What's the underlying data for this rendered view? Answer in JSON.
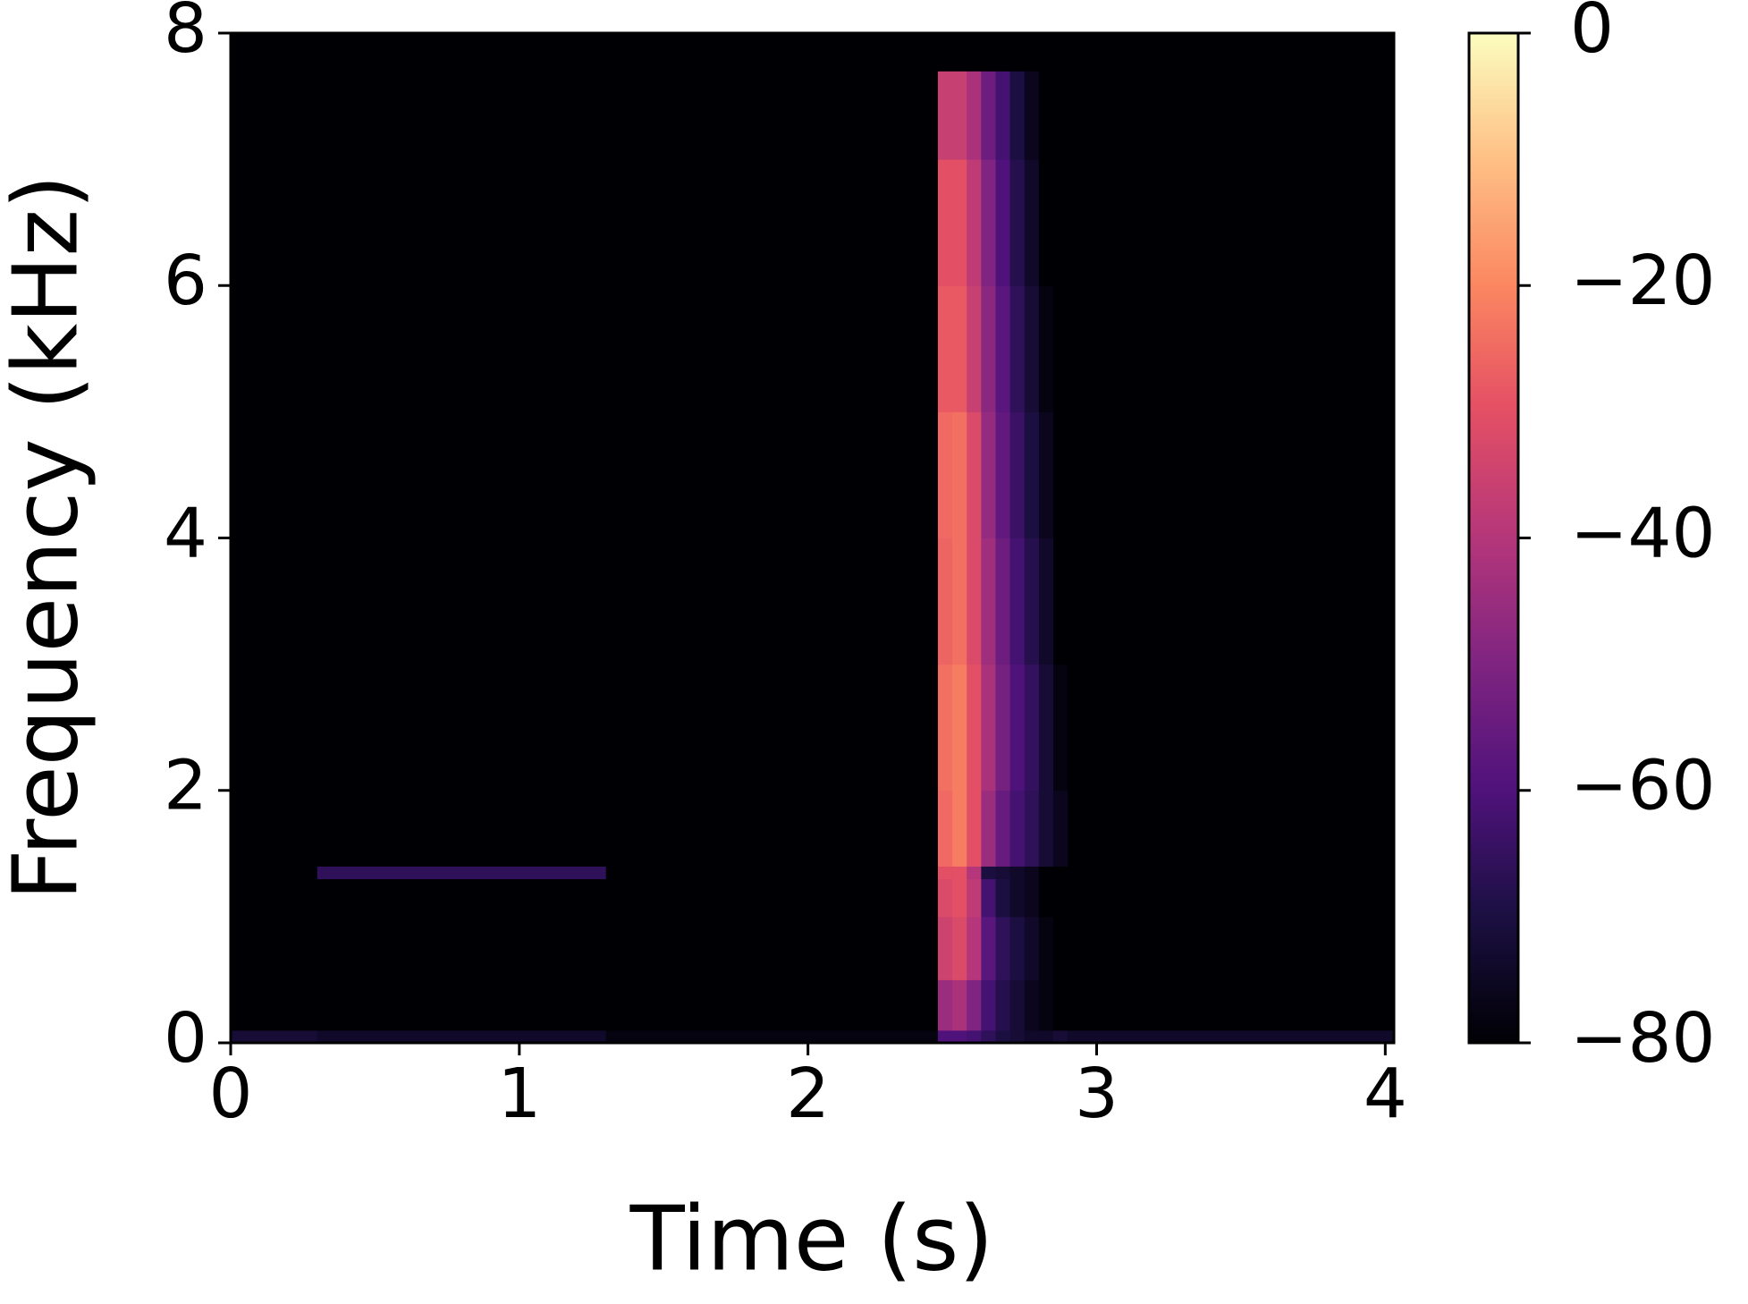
{
  "chart_data": {
    "type": "heatmap",
    "colormap": "magma",
    "xlabel": "Time (s)",
    "ylabel": "Frequency (kHz)",
    "xlim": [
      0,
      4.03
    ],
    "ylim": [
      0,
      8
    ],
    "xticks": [
      0,
      1,
      2,
      3,
      4
    ],
    "yticks": [
      0,
      2,
      4,
      6,
      8
    ],
    "x_edges": [
      0,
      0.3,
      1.3,
      2.45,
      2.5,
      2.55,
      2.6,
      2.65,
      2.7,
      2.75,
      2.8,
      2.85,
      2.9,
      4.03
    ],
    "y_edges": [
      0,
      0.1,
      0.5,
      1.0,
      1.3,
      1.4,
      2.0,
      3.0,
      4.0,
      5.0,
      6.0,
      7.0,
      7.7,
      8.0
    ],
    "z": [
      [
        -72,
        -74,
        -78,
        -60,
        -60,
        -62,
        -66,
        -70,
        -72,
        -74,
        -74,
        -72,
        -74
      ],
      [
        -80,
        -80,
        -80,
        -45,
        -42,
        -50,
        -62,
        -68,
        -72,
        -76,
        -78,
        -80,
        -80
      ],
      [
        -80,
        -80,
        -80,
        -35,
        -32,
        -40,
        -58,
        -66,
        -70,
        -74,
        -78,
        -80,
        -80
      ],
      [
        -80,
        -80,
        -80,
        -32,
        -30,
        -38,
        -62,
        -70,
        -74,
        -76,
        -80,
        -80,
        -80
      ],
      [
        -80,
        -66,
        -80,
        -30,
        -30,
        -40,
        -70,
        -72,
        -74,
        -76,
        -80,
        -80,
        -80
      ],
      [
        -80,
        -80,
        -80,
        -25,
        -22,
        -30,
        -45,
        -55,
        -62,
        -66,
        -72,
        -76,
        -80
      ],
      [
        -80,
        -80,
        -80,
        -24,
        -22,
        -30,
        -42,
        -52,
        -60,
        -65,
        -72,
        -78,
        -80
      ],
      [
        -80,
        -80,
        -80,
        -26,
        -24,
        -32,
        -44,
        -54,
        -62,
        -68,
        -74,
        -80,
        -80
      ],
      [
        -80,
        -80,
        -80,
        -25,
        -24,
        -32,
        -46,
        -56,
        -64,
        -70,
        -76,
        -80,
        -80
      ],
      [
        -80,
        -80,
        -80,
        -28,
        -28,
        -36,
        -48,
        -58,
        -66,
        -72,
        -78,
        -80,
        -80
      ],
      [
        -80,
        -80,
        -80,
        -30,
        -30,
        -38,
        -50,
        -60,
        -68,
        -74,
        -80,
        -80,
        -80
      ],
      [
        -80,
        -80,
        -80,
        -36,
        -36,
        -42,
        -54,
        -62,
        -70,
        -76,
        -80,
        -80,
        -80
      ],
      [
        -80,
        -80,
        -80,
        -80,
        -80,
        -80,
        -80,
        -80,
        -80,
        -80,
        -80,
        -80,
        -80
      ]
    ],
    "zlim": [
      -80,
      0
    ],
    "zticks": [
      {
        "value": -80,
        "label": "−80"
      },
      {
        "value": -60,
        "label": "−60"
      },
      {
        "value": -40,
        "label": "−40"
      },
      {
        "value": -20,
        "label": "−20"
      },
      0
    ]
  }
}
